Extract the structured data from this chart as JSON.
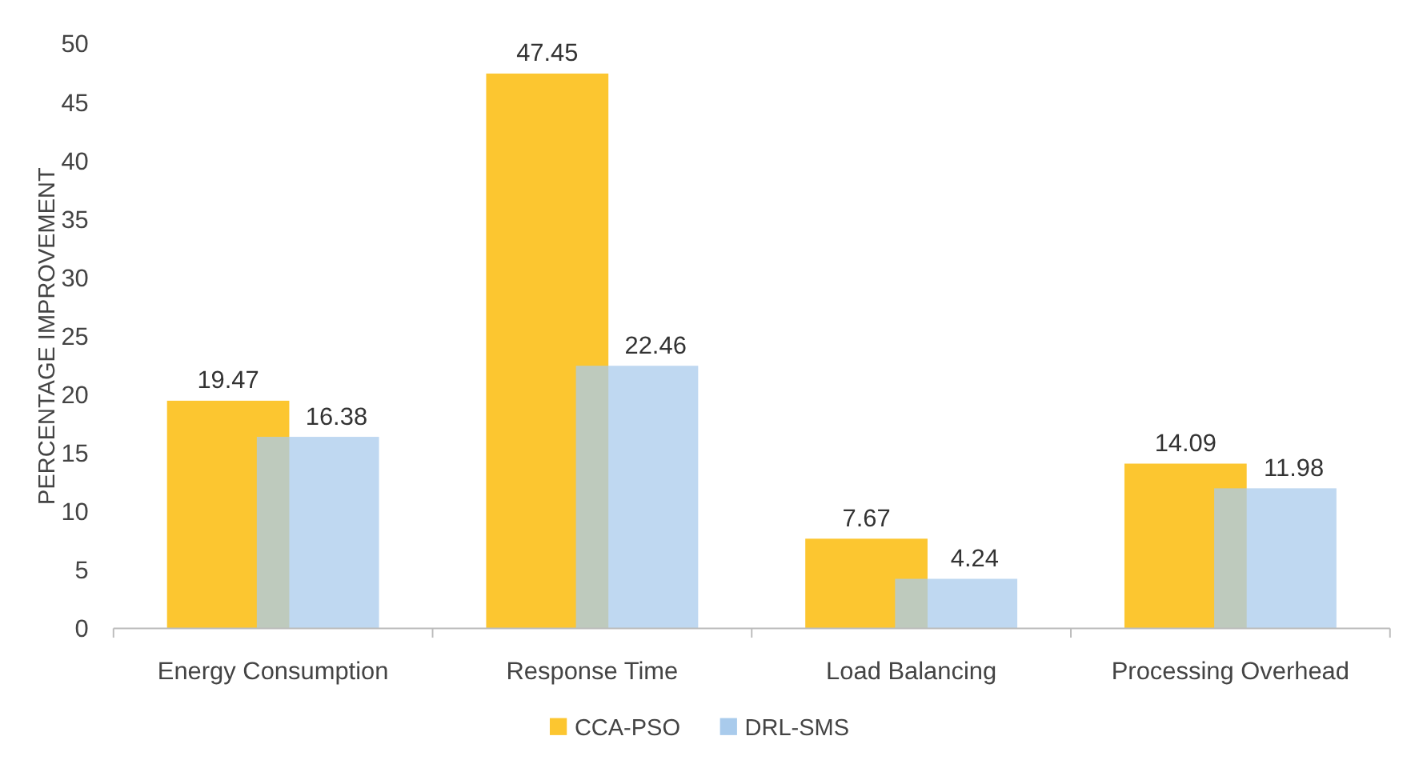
{
  "chart_data": {
    "type": "bar",
    "ylabel": "PERCENTAGE IMPROVEMENT",
    "categories": [
      "Energy Consumption",
      "Response Time",
      "Load Balancing",
      "Processing Overhead"
    ],
    "series": [
      {
        "name": "CCA-PSO",
        "color": "#fcc630",
        "values": [
          19.47,
          47.45,
          7.67,
          14.09
        ]
      },
      {
        "name": "DRL-SMS",
        "color": "#a9cbec",
        "values": [
          16.38,
          22.46,
          4.24,
          11.98
        ]
      }
    ],
    "ylim": [
      0,
      50
    ],
    "yticks": [
      0,
      5,
      10,
      15,
      20,
      25,
      30,
      35,
      40,
      45,
      50
    ],
    "data_labels": true,
    "legend": "bottom",
    "grid": false
  }
}
